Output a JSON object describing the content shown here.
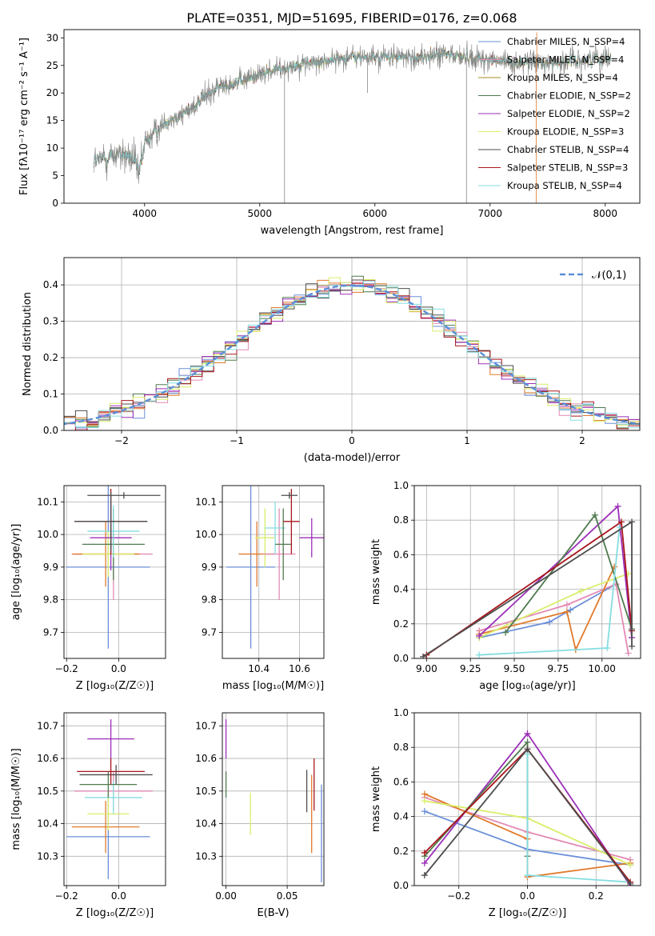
{
  "figure": {
    "title": "PLATE=0351, MJD=51695, FIBERID=0176, z=0.068"
  },
  "colors": {
    "Chabrier MILES": "#6a8fd8",
    "Salpeter MILES": "#e28ab4",
    "Kroupa MILES": "#a58c22",
    "Chabrier ELODIE": "#4f7a4f",
    "Salpeter ELODIE": "#9b2fb8",
    "Kroupa ELODIE": "#d9ee6a",
    "Chabrier STELIB": "#4d4d4d",
    "Salpeter STELIB": "#a8161c",
    "Kroupa STELIB": "#86dde0",
    "orange": "#e07a2c",
    "gray": "#888888"
  },
  "chart_data": [
    {
      "id": "spectrum",
      "type": "line",
      "xlabel": "wavelength [Angstrom, rest frame]",
      "ylabel": "Flux [fλ10⁻¹⁷ erg cm⁻² s⁻¹ A⁻¹]",
      "xlim": [
        3300,
        8300
      ],
      "ylim": [
        0,
        31.5
      ],
      "xticks": [
        4000,
        5000,
        6000,
        7000,
        8000
      ],
      "yticks": [
        0,
        5,
        10,
        15,
        20,
        25,
        30
      ],
      "legend_position": "top-right",
      "legend": [
        "Chabrier MILES, N_SSP=4",
        "Salpeter MILES, N_SSP=4",
        "Kroupa MILES, N_SSP=4",
        "Chabrier ELODIE, N_SSP=2",
        "Salpeter ELODIE, N_SSP=2",
        "Kroupa ELODIE, N_SSP=3",
        "Chabrier STELIB, N_SSP=4",
        "Salpeter STELIB, N_SSP=3",
        "Kroupa STELIB, N_SSP=4"
      ],
      "continuum_points": [
        [
          3560,
          7.5
        ],
        [
          3700,
          8.5
        ],
        [
          3800,
          9
        ],
        [
          3900,
          8
        ],
        [
          3950,
          5
        ],
        [
          4000,
          11
        ],
        [
          4100,
          13
        ],
        [
          4200,
          15
        ],
        [
          4300,
          16
        ],
        [
          4400,
          17
        ],
        [
          4500,
          19
        ],
        [
          4600,
          20.5
        ],
        [
          4700,
          21.5
        ],
        [
          4800,
          22
        ],
        [
          4900,
          22.5
        ],
        [
          5000,
          23.5
        ],
        [
          5100,
          24
        ],
        [
          5200,
          24.5
        ],
        [
          5300,
          25
        ],
        [
          5400,
          25.5
        ],
        [
          5500,
          25.5
        ],
        [
          5600,
          26
        ],
        [
          5800,
          26.5
        ],
        [
          6000,
          26.5
        ],
        [
          6200,
          26.5
        ],
        [
          6400,
          26.5
        ],
        [
          6600,
          27
        ],
        [
          6800,
          26.5
        ],
        [
          7000,
          26
        ],
        [
          7200,
          25.5
        ],
        [
          7400,
          25.5
        ],
        [
          7600,
          25.5
        ],
        [
          7800,
          26
        ],
        [
          8050,
          26.5
        ]
      ]
    },
    {
      "id": "residuals",
      "type": "bar",
      "xlabel": "(data-model)/error",
      "ylabel": "Normed distribution",
      "xlim": [
        -2.5,
        2.5
      ],
      "ylim": [
        0,
        0.475
      ],
      "xticks": [
        -2,
        -1,
        0,
        1,
        2
      ],
      "yticks": [
        0.0,
        0.1,
        0.2,
        0.3,
        0.4
      ],
      "bin_width": 0.1,
      "reference_curve": {
        "label": "𝒩(0,1)",
        "mean": 0,
        "sigma": 1
      },
      "legend_position": "top-right"
    },
    {
      "id": "age_vs_Z",
      "type": "scatter",
      "xlabel": "Z [log₁₀(Z/Z☉)]",
      "ylabel": "age  [log₁₀(age/yr)]",
      "xlim": [
        -0.21,
        0.18
      ],
      "ylim": [
        9.62,
        10.15
      ],
      "xticks": [
        -0.2,
        0.0
      ],
      "yticks": [
        9.7,
        9.8,
        9.9,
        10.0,
        10.1
      ],
      "points": [
        {
          "model": "Chabrier MILES",
          "x": -0.04,
          "y": 9.9,
          "xerr": 0.16,
          "yerr": 0.25
        },
        {
          "model": "Salpeter MILES",
          "x": -0.02,
          "y": 9.94,
          "xerr": 0.15,
          "yerr": 0.14
        },
        {
          "model": "orange",
          "x": -0.05,
          "y": 9.94,
          "xerr": 0.13,
          "yerr": 0.1
        },
        {
          "model": "Kroupa ELODIE",
          "x": -0.04,
          "y": 9.94,
          "xerr": 0.1,
          "yerr": 0.07
        },
        {
          "model": "Salpeter ELODIE",
          "x": -0.03,
          "y": 9.99,
          "xerr": 0.08,
          "yerr": 0.1
        },
        {
          "model": "Chabrier ELODIE",
          "x": -0.02,
          "y": 9.97,
          "xerr": 0.12,
          "yerr": 0.11
        },
        {
          "model": "Kroupa STELIB",
          "x": -0.02,
          "y": 10.01,
          "xerr": 0.1,
          "yerr": 0.08
        },
        {
          "model": "Salpeter STELIB",
          "x": -0.03,
          "y": 10.04,
          "xerr": 0.14,
          "yerr": 0.1
        },
        {
          "model": "Chabrier STELIB",
          "x": -0.03,
          "y": 10.04,
          "xerr": 0.14,
          "yerr": 0.09
        },
        {
          "model": "Chabrier STELIB",
          "x": 0.02,
          "y": 10.12,
          "xerr": 0.14,
          "yerr": 0.01
        }
      ]
    },
    {
      "id": "age_vs_mass",
      "type": "scatter",
      "xlabel": "mass [log₁₀(M/M☉)]",
      "ylabel": "",
      "xlim": [
        10.22,
        10.72
      ],
      "ylim": [
        9.62,
        10.15
      ],
      "xticks": [
        10.4,
        10.6
      ],
      "yticks": [
        9.7,
        9.8,
        9.9,
        10.0,
        10.1
      ],
      "points": [
        {
          "model": "Chabrier MILES",
          "x": 10.36,
          "y": 9.9,
          "xerr": 0.12,
          "yerr": 0.25
        },
        {
          "model": "orange",
          "x": 10.39,
          "y": 9.94,
          "xerr": 0.09,
          "yerr": 0.1
        },
        {
          "model": "Kroupa ELODIE",
          "x": 10.43,
          "y": 9.99,
          "xerr": 0.05,
          "yerr": 0.09
        },
        {
          "model": "Salpeter MILES",
          "x": 10.5,
          "y": 9.94,
          "xerr": 0.08,
          "yerr": 0.14
        },
        {
          "model": "Kroupa STELIB",
          "x": 10.48,
          "y": 10.02,
          "xerr": 0.05,
          "yerr": 0.08
        },
        {
          "model": "Chabrier ELODIE",
          "x": 10.52,
          "y": 9.97,
          "xerr": 0.04,
          "yerr": 0.11
        },
        {
          "model": "Salpeter STELIB",
          "x": 10.56,
          "y": 10.04,
          "xerr": 0.04,
          "yerr": 0.1
        },
        {
          "model": "Chabrier STELIB",
          "x": 10.55,
          "y": 10.12,
          "xerr": 0.04,
          "yerr": 0.01
        },
        {
          "model": "Salpeter ELODIE",
          "x": 10.66,
          "y": 9.99,
          "xerr": 0.06,
          "yerr": 0.06
        }
      ]
    },
    {
      "id": "weight_vs_age",
      "type": "line",
      "xlabel": "age  [log₁₀(age/yr)]",
      "ylabel": "mass weight",
      "xlim": [
        8.93,
        10.22
      ],
      "ylim": [
        0,
        1
      ],
      "xticks": [
        9.0,
        9.25,
        9.5,
        9.75,
        10.0
      ],
      "yticks": [
        0.0,
        0.2,
        0.4,
        0.6,
        0.8,
        1.0
      ],
      "series": [
        {
          "model": "Chabrier MILES",
          "x": [
            9.3,
            9.7,
            9.82,
            10.08
          ],
          "y": [
            0.12,
            0.21,
            0.28,
            0.43
          ]
        },
        {
          "model": "Salpeter MILES",
          "x": [
            9.3,
            9.8,
            10.08,
            10.15
          ],
          "y": [
            0.16,
            0.31,
            0.43,
            0.03
          ]
        },
        {
          "model": "orange",
          "x": [
            9.3,
            9.8,
            9.85,
            10.07
          ],
          "y": [
            0.14,
            0.27,
            0.05,
            0.53
          ]
        },
        {
          "model": "Kroupa ELODIE",
          "x": [
            9.3,
            9.88,
            10.15
          ],
          "y": [
            0.12,
            0.39,
            0.49
          ]
        },
        {
          "model": "Salpeter ELODIE",
          "x": [
            9.3,
            10.09,
            10.17
          ],
          "y": [
            0.13,
            0.88,
            0.12
          ]
        },
        {
          "model": "Chabrier ELODIE",
          "x": [
            9.45,
            9.96,
            10.17
          ],
          "y": [
            0.15,
            0.83,
            0.17
          ]
        },
        {
          "model": "Kroupa STELIB",
          "x": [
            9.3,
            10.03,
            10.1
          ],
          "y": [
            0.02,
            0.06,
            0.76
          ]
        },
        {
          "model": "Salpeter STELIB",
          "x": [
            9.0,
            10.11,
            10.17
          ],
          "y": [
            0.02,
            0.79,
            0.16
          ]
        },
        {
          "model": "Chabrier STELIB",
          "x": [
            8.98,
            10.17,
            10.17
          ],
          "y": [
            0.01,
            0.79,
            0.07
          ]
        }
      ]
    },
    {
      "id": "mass_vs_Z",
      "type": "scatter",
      "xlabel": "Z [log₁₀(Z/Z☉)]",
      "ylabel": "mass [log₁₀(M/M☉)]",
      "xlim": [
        -0.21,
        0.18
      ],
      "ylim": [
        10.21,
        10.74
      ],
      "xticks": [
        -0.2,
        0.0
      ],
      "yticks": [
        10.3,
        10.4,
        10.5,
        10.6,
        10.7
      ],
      "points": [
        {
          "model": "Chabrier MILES",
          "x": -0.04,
          "y": 10.36,
          "xerr": 0.16,
          "yerr": 0.13
        },
        {
          "model": "orange",
          "x": -0.05,
          "y": 10.39,
          "xerr": 0.13,
          "yerr": 0.08
        },
        {
          "model": "Kroupa ELODIE",
          "x": -0.04,
          "y": 10.43,
          "xerr": 0.08,
          "yerr": 0.05
        },
        {
          "model": "Salpeter MILES",
          "x": -0.02,
          "y": 10.5,
          "xerr": 0.15,
          "yerr": 0.06
        },
        {
          "model": "Kroupa STELIB",
          "x": -0.02,
          "y": 10.48,
          "xerr": 0.11,
          "yerr": 0.05
        },
        {
          "model": "Chabrier ELODIE",
          "x": -0.04,
          "y": 10.52,
          "xerr": 0.11,
          "yerr": 0.04
        },
        {
          "model": "Chabrier STELIB",
          "x": -0.01,
          "y": 10.55,
          "xerr": 0.14,
          "yerr": 0.03
        },
        {
          "model": "Salpeter STELIB",
          "x": -0.03,
          "y": 10.56,
          "xerr": 0.13,
          "yerr": 0.04
        },
        {
          "model": "Salpeter ELODIE",
          "x": -0.03,
          "y": 10.66,
          "xerr": 0.09,
          "yerr": 0.06
        }
      ]
    },
    {
      "id": "mass_vs_ebv",
      "type": "scatter",
      "xlabel": "E(B-V)",
      "ylabel": "",
      "xlim": [
        -0.003,
        0.08
      ],
      "ylim": [
        10.21,
        10.74
      ],
      "xticks": [
        0.0,
        0.05
      ],
      "yticks": [
        10.3,
        10.4,
        10.5,
        10.6,
        10.7
      ],
      "points": [
        {
          "model": "Salpeter ELODIE",
          "x": 0.0,
          "y": 10.66,
          "xerr": 0,
          "yerr": 0.06
        },
        {
          "model": "Chabrier ELODIE",
          "x": 0.0,
          "y": 10.52,
          "xerr": 0,
          "yerr": 0.04
        },
        {
          "model": "Kroupa ELODIE",
          "x": 0.02,
          "y": 10.43,
          "xerr": 0,
          "yerr": 0.065
        },
        {
          "model": "Chabrier STELIB",
          "x": 0.066,
          "y": 10.5,
          "xerr": 0,
          "yerr": 0.065
        },
        {
          "model": "Salpeter STELIB",
          "x": 0.072,
          "y": 10.52,
          "xerr": 0,
          "yerr": 0.08
        },
        {
          "model": "orange",
          "x": 0.07,
          "y": 10.43,
          "xerr": 0,
          "yerr": 0.12
        },
        {
          "model": "Chabrier MILES",
          "x": 0.078,
          "y": 10.37,
          "xerr": 0,
          "yerr": 0.15
        }
      ]
    },
    {
      "id": "weight_vs_Z",
      "type": "line",
      "xlabel": "Z [log₁₀(Z/Z☉)]",
      "ylabel": "mass weight",
      "xlim": [
        -0.33,
        0.33
      ],
      "ylim": [
        0,
        1
      ],
      "xticks": [
        -0.2,
        0.0,
        0.2
      ],
      "yticks": [
        0.0,
        0.2,
        0.4,
        0.6,
        0.8,
        1.0
      ],
      "series": [
        {
          "model": "Chabrier MILES",
          "x": [
            -0.3,
            0.0,
            0.3
          ],
          "y": [
            0.43,
            0.21,
            0.12
          ]
        },
        {
          "model": "Salpeter MILES",
          "x": [
            -0.3,
            0.0,
            0.3
          ],
          "y": [
            0.51,
            0.31,
            0.15
          ]
        },
        {
          "model": "orange",
          "x": [
            -0.3,
            0.0,
            0.0,
            0.3
          ],
          "y": [
            0.53,
            0.27,
            0.05,
            0.13
          ]
        },
        {
          "model": "Kroupa ELODIE",
          "x": [
            -0.3,
            0.0,
            0.3
          ],
          "y": [
            0.49,
            0.39,
            0.12
          ]
        },
        {
          "model": "Salpeter ELODIE",
          "x": [
            -0.3,
            0.0,
            0.3
          ],
          "y": [
            0.13,
            0.88,
            0.0
          ]
        },
        {
          "model": "Chabrier ELODIE",
          "x": [
            -0.3,
            0.0,
            0.0
          ],
          "y": [
            0.17,
            0.83,
            0.17
          ]
        },
        {
          "model": "Kroupa STELIB",
          "x": [
            0.0,
            0.0,
            0.3
          ],
          "y": [
            0.76,
            0.06,
            0.02
          ]
        },
        {
          "model": "Salpeter STELIB",
          "x": [
            -0.3,
            0.0,
            0.3
          ],
          "y": [
            0.19,
            0.79,
            0.02
          ]
        },
        {
          "model": "Chabrier STELIB",
          "x": [
            -0.3,
            0.0,
            0.3
          ],
          "y": [
            0.06,
            0.79,
            0.01
          ]
        }
      ]
    }
  ]
}
